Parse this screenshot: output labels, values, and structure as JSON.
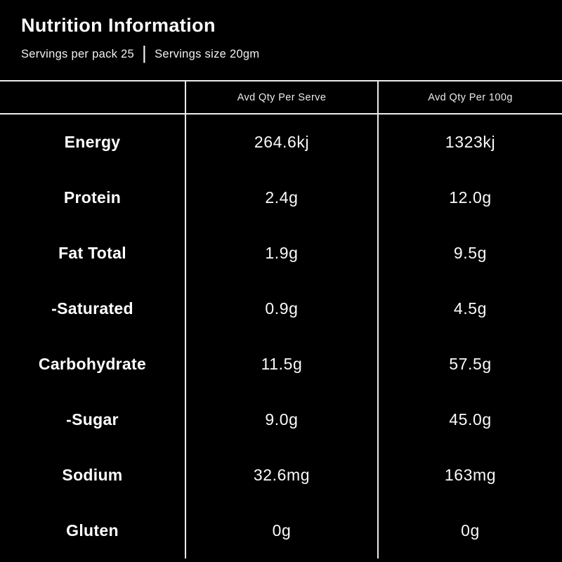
{
  "colors": {
    "background": "#000000",
    "line": "#ececec",
    "text": "#f7f7f7"
  },
  "header": {
    "title": "Nutrition Information",
    "servings_per_pack": "Servings per pack 25",
    "separator": "|",
    "serving_size": "Servings size 20gm"
  },
  "table": {
    "columns": [
      "",
      "Avd Qty Per Serve",
      "Avd Qty Per 100g"
    ],
    "rows": [
      {
        "label": "Energy",
        "per_serve": "264.6kj",
        "per_100g": "1323kj"
      },
      {
        "label": "Protein",
        "per_serve": "2.4g",
        "per_100g": "12.0g"
      },
      {
        "label": "Fat Total",
        "per_serve": "1.9g",
        "per_100g": "9.5g"
      },
      {
        "label": "-Saturated",
        "per_serve": "0.9g",
        "per_100g": "4.5g"
      },
      {
        "label": "Carbohydrate",
        "per_serve": "11.5g",
        "per_100g": "57.5g"
      },
      {
        "label": "-Sugar",
        "per_serve": "9.0g",
        "per_100g": "45.0g"
      },
      {
        "label": "Sodium",
        "per_serve": "32.6mg",
        "per_100g": "163mg"
      },
      {
        "label": "Gluten",
        "per_serve": "0g",
        "per_100g": "0g"
      }
    ]
  }
}
